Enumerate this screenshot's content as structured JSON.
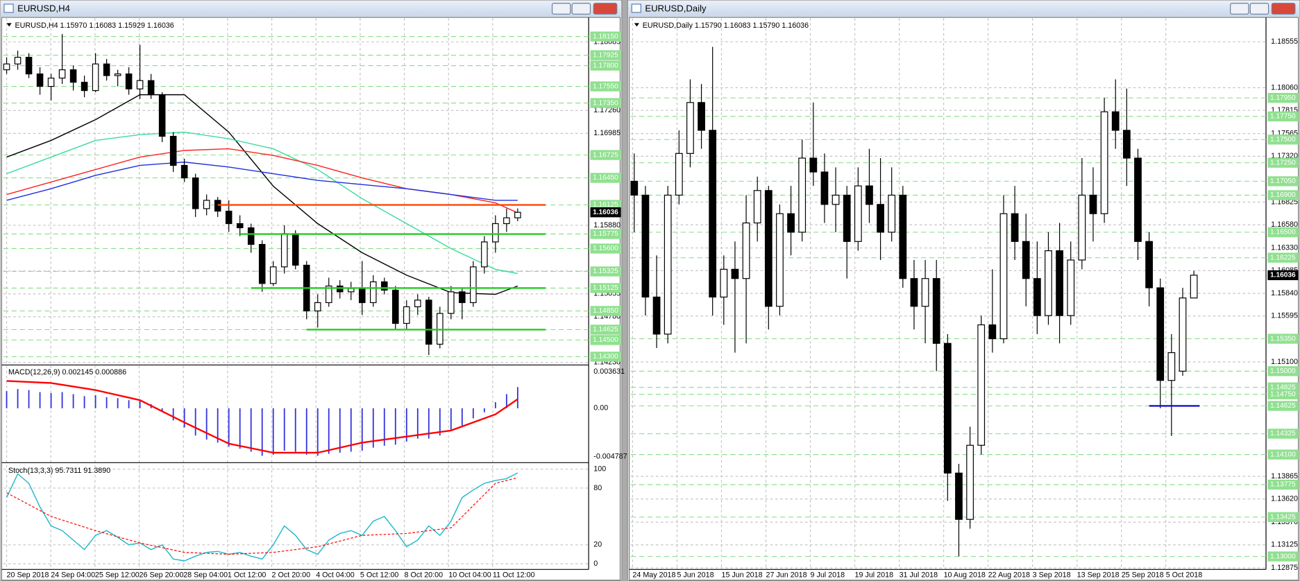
{
  "windows": [
    {
      "title": "EURUSD,H4",
      "header": "EURUSD,H4  1.15970 1.16083 1.15929 1.16036",
      "ylim": [
        1.1421,
        1.1837
      ],
      "price_ticks": [
        1.18085,
        {
          "value": 1.1726,
          "label": "1.17260"
        },
        1.16985,
        {
          "value": 1.1588,
          "label": "1.15880"
        },
        {
          "value": 1.1533,
          "label": "1.15330"
        },
        1.15055,
        {
          "value": 1.1478,
          "label": "1.14780"
        },
        {
          "value": 1.1423,
          "label": "1.14230"
        }
      ],
      "levels": [
        {
          "value": 1.1815,
          "label": "1.18150"
        },
        1.17925,
        {
          "value": 1.178,
          "label": "1.17800"
        },
        {
          "value": 1.1755,
          "label": "1.17550"
        },
        {
          "value": 1.1735,
          "label": "1.17350"
        },
        1.16725,
        {
          "value": 1.1645,
          "label": "1.16450"
        },
        1.16125,
        1.15775,
        {
          "value": 1.156,
          "label": "1.15600"
        },
        1.15325,
        1.15125,
        {
          "value": 1.1485,
          "label": "1.14850"
        },
        1.14625,
        {
          "value": 1.145,
          "label": "1.14500"
        },
        {
          "value": 1.143,
          "label": "1.14300"
        }
      ],
      "current": 1.16036,
      "dates": [
        "20 Sep 2018",
        "24 Sep 04:00",
        "25 Sep 12:00",
        "26 Sep 20:00",
        "28 Sep 04:00",
        "1 Oct 12:00",
        "2 Oct 20:00",
        "4 Oct 04:00",
        "5 Oct 12:00",
        "8 Oct 20:00",
        "10 Oct 04:00",
        "11 Oct 12:00"
      ],
      "candles": [
        [
          1.1775,
          1.179,
          1.177,
          1.1782
        ],
        [
          1.1782,
          1.1798,
          1.1775,
          1.179
        ],
        [
          1.179,
          1.1795,
          1.1765,
          1.177
        ],
        [
          1.177,
          1.1778,
          1.1745,
          1.1755
        ],
        [
          1.1755,
          1.177,
          1.1738,
          1.1765
        ],
        [
          1.1765,
          1.1818,
          1.1758,
          1.1775
        ],
        [
          1.1775,
          1.178,
          1.175,
          1.176
        ],
        [
          1.176,
          1.1768,
          1.1742,
          1.175
        ],
        [
          1.175,
          1.1795,
          1.1748,
          1.1782
        ],
        [
          1.1782,
          1.1788,
          1.1762,
          1.1768
        ],
        [
          1.1768,
          1.1775,
          1.1755,
          1.177
        ],
        [
          1.177,
          1.1778,
          1.1745,
          1.1752
        ],
        [
          1.1752,
          1.1805,
          1.174,
          1.1762
        ],
        [
          1.1762,
          1.177,
          1.174,
          1.1745
        ],
        [
          1.1745,
          1.1748,
          1.1688,
          1.1695
        ],
        [
          1.1695,
          1.17,
          1.1652,
          1.166
        ],
        [
          1.166,
          1.1668,
          1.164,
          1.1645
        ],
        [
          1.1645,
          1.165,
          1.1598,
          1.1608
        ],
        [
          1.1608,
          1.1625,
          1.16,
          1.1618
        ],
        [
          1.1618,
          1.1622,
          1.1598,
          1.1605
        ],
        [
          1.1605,
          1.1618,
          1.158,
          1.159
        ],
        [
          1.159,
          1.16,
          1.1575,
          1.1585
        ],
        [
          1.1585,
          1.159,
          1.1555,
          1.1565
        ],
        [
          1.1565,
          1.157,
          1.1508,
          1.1518
        ],
        [
          1.1518,
          1.1545,
          1.1515,
          1.1538
        ],
        [
          1.1538,
          1.1588,
          1.153,
          1.1578
        ],
        [
          1.1578,
          1.1582,
          1.1535,
          1.154
        ],
        [
          1.154,
          1.1545,
          1.1475,
          1.1485
        ],
        [
          1.1485,
          1.1505,
          1.1465,
          1.1495
        ],
        [
          1.1495,
          1.1525,
          1.149,
          1.1515
        ],
        [
          1.1515,
          1.1522,
          1.15,
          1.1508
        ],
        [
          1.1508,
          1.152,
          1.1498,
          1.1512
        ],
        [
          1.1512,
          1.1545,
          1.148,
          1.1495
        ],
        [
          1.1495,
          1.1528,
          1.149,
          1.152
        ],
        [
          1.152,
          1.1525,
          1.1505,
          1.151
        ],
        [
          1.151,
          1.1515,
          1.1462,
          1.147
        ],
        [
          1.147,
          1.1498,
          1.1462,
          1.149
        ],
        [
          1.149,
          1.1505,
          1.148,
          1.1498
        ],
        [
          1.1498,
          1.1502,
          1.1432,
          1.1445
        ],
        [
          1.1445,
          1.149,
          1.144,
          1.1482
        ],
        [
          1.1482,
          1.1515,
          1.1475,
          1.1508
        ],
        [
          1.1508,
          1.1512,
          1.1475,
          1.1495
        ],
        [
          1.1495,
          1.1545,
          1.149,
          1.1538
        ],
        [
          1.1538,
          1.1575,
          1.153,
          1.1568
        ],
        [
          1.1568,
          1.16,
          1.1555,
          1.159
        ],
        [
          1.159,
          1.1608,
          1.158,
          1.1597
        ],
        [
          1.1597,
          1.16083,
          1.15929,
          1.16036
        ]
      ],
      "ma_bars": [
        0,
        4,
        8,
        12,
        16,
        20,
        24,
        28,
        32,
        36,
        40,
        44,
        46
      ],
      "ma": [
        {
          "color": "#000000",
          "values": [
            1.167,
            1.169,
            1.1715,
            1.1745,
            1.1745,
            1.17,
            1.1635,
            1.159,
            1.1555,
            1.1528,
            1.1507,
            1.1505,
            1.1515
          ]
        },
        {
          "color": "#3cdc9c",
          "values": [
            1.165,
            1.167,
            1.169,
            1.1697,
            1.17,
            1.1692,
            1.168,
            1.1655,
            1.162,
            1.159,
            1.156,
            1.1535,
            1.153
          ]
        },
        {
          "color": "#ff2020",
          "values": [
            1.1625,
            1.164,
            1.1655,
            1.167,
            1.1678,
            1.168,
            1.1672,
            1.166,
            1.1645,
            1.1632,
            1.1625,
            1.1615,
            1.1603
          ]
        },
        {
          "color": "#1f2fe0",
          "values": [
            1.1618,
            1.1632,
            1.1648,
            1.166,
            1.1664,
            1.1658,
            1.165,
            1.1642,
            1.1637,
            1.1632,
            1.1625,
            1.1618,
            1.1618
          ]
        }
      ],
      "hlines": [
        {
          "value": 1.16125,
          "color": "#ff4500",
          "start_bar": 19
        },
        {
          "value": 1.15775,
          "color": "#22cc22",
          "start_bar": 21
        },
        {
          "value": 1.15125,
          "color": "#22cc22",
          "start_bar": 22
        },
        {
          "value": 1.14625,
          "color": "#22cc22",
          "start_bar": 27
        }
      ],
      "macd": {
        "header": "MACD(12,26,9) 0.002145 0.000886",
        "ylim": [
          -0.0053,
          0.0042
        ],
        "ticks": [
          0.003631,
          {
            "value": 0,
            "label": "0.00"
          },
          -0.004787
        ],
        "hist_color": "#3030e0",
        "signal_color": "#ff0000",
        "hist": [
          0.0017,
          0.0019,
          0.0018,
          0.0016,
          0.0015,
          0.0016,
          0.0014,
          0.0012,
          0.0013,
          0.0011,
          0.001,
          0.0008,
          0.0007,
          0.0004,
          -0.0003,
          -0.0012,
          -0.0019,
          -0.0027,
          -0.0031,
          -0.0034,
          -0.0038,
          -0.004,
          -0.0043,
          -0.0047,
          -0.0046,
          -0.0042,
          -0.0043,
          -0.0046,
          -0.0047,
          -0.0045,
          -0.0044,
          -0.0043,
          -0.0042,
          -0.0039,
          -0.0037,
          -0.0036,
          -0.0033,
          -0.003,
          -0.003,
          -0.0027,
          -0.0021,
          -0.0017,
          -0.001,
          -0.0004,
          0.0006,
          0.0014,
          0.0021
        ],
        "signal": [
          0.0027,
          0.0025,
          0.0018,
          0.0008,
          -0.0014,
          -0.0035,
          -0.0044,
          -0.0044,
          -0.0034,
          -0.0028,
          -0.0022,
          -0.0006,
          0.0009
        ]
      },
      "stoch": {
        "header": "Stoch(13,3,3) 95.7311 91.3890",
        "ylim": [
          -6,
          106
        ],
        "ticks": [
          100,
          80,
          20,
          0
        ],
        "main_color": "#20b8c8",
        "signal_color": "#ff0000",
        "main": [
          70,
          95,
          85,
          60,
          40,
          35,
          25,
          15,
          30,
          35,
          28,
          20,
          22,
          15,
          20,
          5,
          3,
          8,
          12,
          13,
          10,
          12,
          8,
          5,
          20,
          40,
          30,
          15,
          10,
          25,
          32,
          35,
          30,
          45,
          50,
          35,
          18,
          25,
          40,
          30,
          45,
          70,
          78,
          85,
          88,
          90,
          96
        ],
        "signal": [
          75,
          50,
          35,
          22,
          12,
          10,
          12,
          18,
          30,
          32,
          38,
          85,
          91
        ]
      }
    },
    {
      "title": "EURUSD,Daily",
      "header": "EURUSD,Daily  1.15790 1.16083 1.15790 1.16036",
      "ylim": [
        1.1286,
        1.1881
      ],
      "price_ticks": [
        1.18555,
        {
          "value": 1.1806,
          "label": "1.18060"
        },
        1.17815,
        1.17565,
        {
          "value": 1.1732,
          "label": "1.17320"
        },
        1.16825,
        {
          "value": 1.1658,
          "label": "1.16580"
        },
        {
          "value": 1.1633,
          "label": "1.16330"
        },
        1.16085,
        {
          "value": 1.1584,
          "label": "1.15840"
        },
        1.15595,
        {
          "value": 1.151,
          "label": "1.15100"
        },
        1.13865,
        {
          "value": 1.1362,
          "label": "1.13620"
        },
        {
          "value": 1.1337,
          "label": "1.13370"
        },
        1.13125,
        1.12875
      ],
      "levels": [
        {
          "value": 1.1795,
          "label": "1.17950"
        },
        {
          "value": 1.1775,
          "label": "1.17750"
        },
        {
          "value": 1.175,
          "label": "1.17500"
        },
        {
          "value": 1.1725,
          "label": "1.17250"
        },
        {
          "value": 1.1705,
          "label": "1.17050"
        },
        {
          "value": 1.169,
          "label": "1.16900"
        },
        {
          "value": 1.165,
          "label": "1.16500"
        },
        1.16225,
        {
          "value": 1.1535,
          "label": "1.15350"
        },
        {
          "value": 1.15,
          "label": "1.15000"
        },
        1.14825,
        {
          "value": 1.1475,
          "label": "1.14750"
        },
        1.14625,
        1.14325,
        {
          "value": 1.141,
          "label": "1.14100"
        },
        1.13775,
        1.13425,
        {
          "value": 1.13,
          "label": "1.13000"
        }
      ],
      "current": 1.16036,
      "dates": [
        "24 May 2018",
        "5 Jun 2018",
        "15 Jun 2018",
        "27 Jun 2018",
        "9 Jul 2018",
        "19 Jul 2018",
        "31 Jul 2018",
        "10 Aug 2018",
        "22 Aug 2018",
        "3 Sep 2018",
        "13 Sep 2018",
        "25 Sep 2018",
        "5 Oct 2018"
      ],
      "candles": [
        [
          1.1705,
          1.1735,
          1.165,
          1.169
        ],
        [
          1.169,
          1.17,
          1.156,
          1.158
        ],
        [
          1.158,
          1.1625,
          1.1525,
          1.154
        ],
        [
          1.154,
          1.17,
          1.153,
          1.169
        ],
        [
          1.169,
          1.176,
          1.168,
          1.1735
        ],
        [
          1.1735,
          1.1815,
          1.172,
          1.179
        ],
        [
          1.179,
          1.181,
          1.174,
          1.176
        ],
        [
          1.176,
          1.185,
          1.156,
          1.158
        ],
        [
          1.158,
          1.1625,
          1.155,
          1.161
        ],
        [
          1.161,
          1.164,
          1.152,
          1.16
        ],
        [
          1.16,
          1.169,
          1.153,
          1.166
        ],
        [
          1.166,
          1.171,
          1.164,
          1.1695
        ],
        [
          1.1695,
          1.17,
          1.1545,
          1.157
        ],
        [
          1.157,
          1.168,
          1.156,
          1.167
        ],
        [
          1.167,
          1.17,
          1.1625,
          1.165
        ],
        [
          1.165,
          1.175,
          1.164,
          1.173
        ],
        [
          1.173,
          1.179,
          1.17,
          1.1715
        ],
        [
          1.1715,
          1.1735,
          1.166,
          1.168
        ],
        [
          1.168,
          1.172,
          1.165,
          1.169
        ],
        [
          1.169,
          1.17,
          1.16,
          1.164
        ],
        [
          1.164,
          1.172,
          1.163,
          1.17
        ],
        [
          1.17,
          1.174,
          1.166,
          1.168
        ],
        [
          1.168,
          1.173,
          1.162,
          1.165
        ],
        [
          1.165,
          1.172,
          1.164,
          1.169
        ],
        [
          1.169,
          1.17,
          1.159,
          1.16
        ],
        [
          1.16,
          1.162,
          1.1545,
          1.157
        ],
        [
          1.157,
          1.162,
          1.153,
          1.16
        ],
        [
          1.16,
          1.162,
          1.15,
          1.153
        ],
        [
          1.153,
          1.154,
          1.136,
          1.139
        ],
        [
          1.139,
          1.14,
          1.13,
          1.134
        ],
        [
          1.134,
          1.144,
          1.133,
          1.142
        ],
        [
          1.142,
          1.156,
          1.141,
          1.155
        ],
        [
          1.155,
          1.161,
          1.152,
          1.1535
        ],
        [
          1.1535,
          1.169,
          1.153,
          1.167
        ],
        [
          1.167,
          1.17,
          1.162,
          1.164
        ],
        [
          1.164,
          1.167,
          1.157,
          1.16
        ],
        [
          1.16,
          1.164,
          1.154,
          1.156
        ],
        [
          1.156,
          1.165,
          1.155,
          1.163
        ],
        [
          1.163,
          1.166,
          1.153,
          1.156
        ],
        [
          1.156,
          1.164,
          1.155,
          1.162
        ],
        [
          1.162,
          1.173,
          1.161,
          1.169
        ],
        [
          1.169,
          1.172,
          1.164,
          1.167
        ],
        [
          1.167,
          1.1795,
          1.166,
          1.178
        ],
        [
          1.178,
          1.1815,
          1.174,
          1.176
        ],
        [
          1.176,
          1.1805,
          1.17,
          1.173
        ],
        [
          1.173,
          1.174,
          1.162,
          1.164
        ],
        [
          1.164,
          1.165,
          1.157,
          1.159
        ],
        [
          1.159,
          1.16,
          1.146,
          1.149
        ],
        [
          1.149,
          1.154,
          1.143,
          1.152
        ],
        [
          1.15,
          1.159,
          1.1495,
          1.1579
        ],
        [
          1.1579,
          1.16083,
          1.1579,
          1.16036
        ]
      ],
      "hlines": [
        {
          "value": 1.14625,
          "color": "#1010d0",
          "start_bar": 46
        }
      ]
    }
  ]
}
